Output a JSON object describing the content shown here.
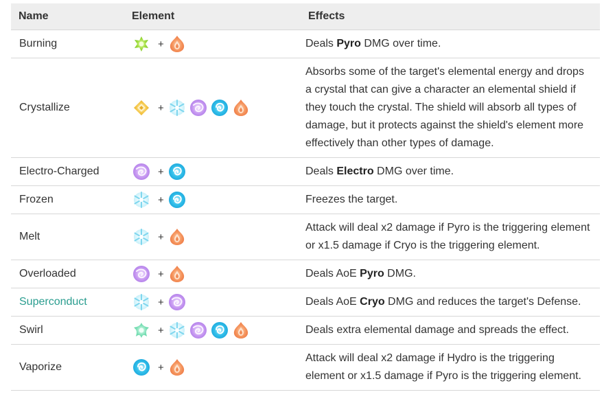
{
  "headers": {
    "name": "Name",
    "element": "Element",
    "effects": "Effects"
  },
  "colors": {
    "link": "#2a9d8f",
    "header_bg": "#eeeeee",
    "border": "#d7d7d7"
  },
  "rows": [
    {
      "name": "Burning",
      "icons": [
        "dendro-icon",
        "pyro-icon"
      ],
      "effect": [
        {
          "t": "Deals "
        },
        {
          "t": "Pyro",
          "b": true
        },
        {
          "t": " DMG over time."
        }
      ]
    },
    {
      "name": "Crystallize",
      "icons": [
        "geo-icon",
        "cryo-icon",
        "electro-icon",
        "hydro-icon",
        "pyro-icon"
      ],
      "effect": [
        {
          "t": "Absorbs some of the target's elemental energy and drops a crystal that can give a character an elemental shield if they touch the crystal. The shield will absorb all types of damage, but it protects against the shield's element more effectively than other types of damage."
        }
      ]
    },
    {
      "name": "Electro-Charged",
      "icons": [
        "electro-icon",
        "hydro-icon"
      ],
      "effect": [
        {
          "t": "Deals "
        },
        {
          "t": "Electro",
          "b": true
        },
        {
          "t": " DMG over time."
        }
      ]
    },
    {
      "name": "Frozen",
      "icons": [
        "cryo-icon",
        "hydro-icon"
      ],
      "effect": [
        {
          "t": "Freezes the target."
        }
      ]
    },
    {
      "name": "Melt",
      "icons": [
        "cryo-icon",
        "pyro-icon"
      ],
      "effect": [
        {
          "t": "Attack will deal x2 damage if Pyro is the triggering element or x1.5 damage if Cryo is the triggering element."
        }
      ]
    },
    {
      "name": "Overloaded",
      "icons": [
        "electro-icon",
        "pyro-icon"
      ],
      "effect": [
        {
          "t": "Deals AoE "
        },
        {
          "t": "Pyro",
          "b": true
        },
        {
          "t": " DMG."
        }
      ]
    },
    {
      "name": "Superconduct",
      "link": true,
      "icons": [
        "cryo-icon",
        "electro-icon"
      ],
      "effect": [
        {
          "t": "Deals AoE "
        },
        {
          "t": "Cryo",
          "b": true
        },
        {
          "t": " DMG and reduces the target's Defense."
        }
      ]
    },
    {
      "name": "Swirl",
      "icons": [
        "anemo-icon",
        "cryo-icon",
        "electro-icon",
        "hydro-icon",
        "pyro-icon"
      ],
      "effect": [
        {
          "t": "Deals extra elemental damage and spreads the effect."
        }
      ]
    },
    {
      "name": "Vaporize",
      "icons": [
        "hydro-icon",
        "pyro-icon"
      ],
      "effect": [
        {
          "t": "Attack will deal x2 damage if Hydro is the triggering element or x1.5 damage if Pyro is the triggering element."
        }
      ]
    }
  ],
  "plus_sign": "+"
}
